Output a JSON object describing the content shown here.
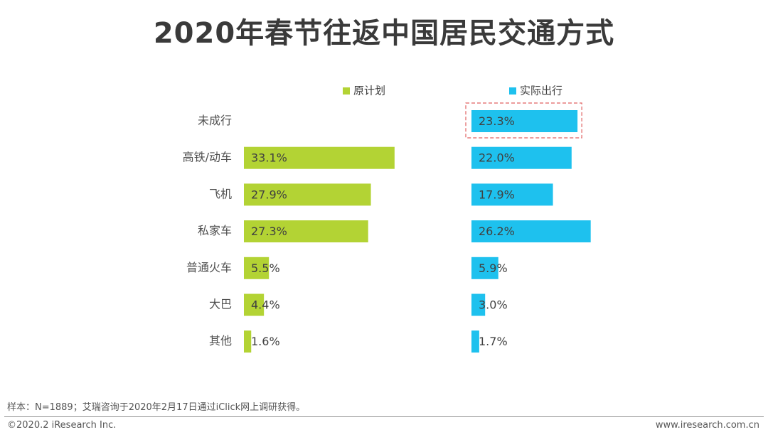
{
  "title": "2020年春节往返中国居民交通方式",
  "chart_data": {
    "type": "bar",
    "orientation": "horizontal",
    "categories": [
      "未成行",
      "高铁/动车",
      "飞机",
      "私家车",
      "普通火车",
      "大巴",
      "其他"
    ],
    "series": [
      {
        "name": "原计划",
        "color": "#b3d334",
        "values": [
          null,
          33.1,
          27.9,
          27.3,
          5.5,
          4.4,
          1.6
        ],
        "labels": [
          "",
          "33.1%",
          "27.9%",
          "27.3%",
          "5.5%",
          "4.4%",
          "1.6%"
        ]
      },
      {
        "name": "实际出行",
        "color": "#1ec1ee",
        "values": [
          23.3,
          22.0,
          17.9,
          26.2,
          5.9,
          3.0,
          1.7
        ],
        "labels": [
          "23.3%",
          "22.0%",
          "17.9%",
          "26.2%",
          "5.9%",
          "3.0%",
          "1.7%"
        ]
      }
    ],
    "highlight": {
      "series": "实际出行",
      "category": "未成行",
      "color": "#e06060"
    },
    "unit": "%"
  },
  "footer": {
    "note": "样本：N=1889；艾瑞咨询于2020年2月17日通过iClick网上调研获得。",
    "copyright": "©2020.2 iResearch Inc.",
    "website": "www.iresearch.com.cn"
  }
}
